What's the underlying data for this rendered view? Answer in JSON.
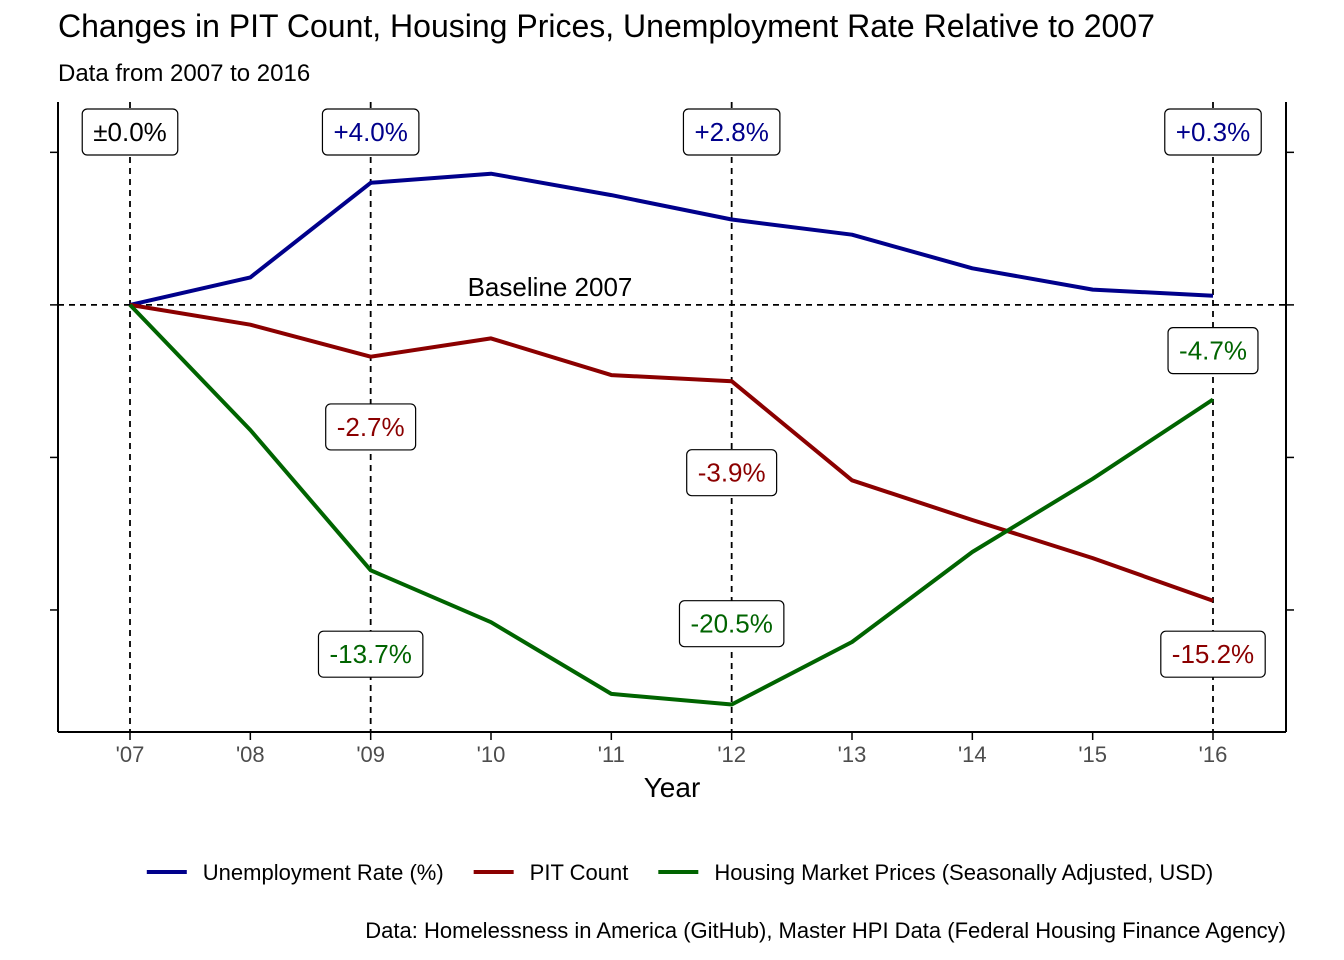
{
  "title": "Changes in PIT Count, Housing Prices, Unemployment Rate Relative to 2007",
  "subtitle": "Data from 2007 to 2016",
  "caption": "Data: Homelessness in America (GitHub), Master HPI Data (Federal Housing Finance Agency)",
  "chart_data": {
    "type": "line",
    "xlabel": "Year",
    "ylabel": "",
    "x": [
      2007,
      2008,
      2009,
      2010,
      2011,
      2012,
      2013,
      2014,
      2015,
      2016
    ],
    "tick_labels": [
      "'07",
      "'08",
      "'09",
      "'10",
      "'11",
      "'12",
      "'13",
      "'14",
      "'15",
      "'16"
    ],
    "ylim": [
      -28,
      13.3
    ],
    "y_ticks": [
      -20,
      -10,
      0,
      10
    ],
    "y_tick_labels_shown": false,
    "grid": false,
    "legend_position": "bottom",
    "baseline": {
      "value": 0,
      "label": "Baseline 2007"
    },
    "highlight_years": [
      2007,
      2009,
      2012,
      2016
    ],
    "series": [
      {
        "name": "Unemployment Rate (%)",
        "color": "#00008B",
        "values": [
          0,
          1.8,
          8.0,
          8.6,
          7.2,
          5.6,
          4.6,
          2.4,
          1.0,
          0.6
        ]
      },
      {
        "name": "PIT Count",
        "color": "#8B0000",
        "values": [
          0,
          -1.3,
          -3.4,
          -2.2,
          -4.6,
          -5.0,
          -11.5,
          -14.1,
          -16.6,
          -19.4
        ]
      },
      {
        "name": "Housing Market Prices (Seasonally Adjusted, USD)",
        "color": "#006400",
        "values": [
          0,
          -8.2,
          -17.4,
          -20.8,
          -25.5,
          -26.2,
          -22.1,
          -16.2,
          -11.4,
          -6.2
        ]
      }
    ],
    "annotations": [
      {
        "year": 2007,
        "text": "±0.0%",
        "color": "#000000",
        "anchor": "top"
      },
      {
        "year": 2009,
        "text": "+4.0%",
        "color": "#00008B",
        "anchor": "top"
      },
      {
        "year": 2012,
        "text": "+2.8%",
        "color": "#00008B",
        "anchor": "top"
      },
      {
        "year": 2016,
        "text": "+0.3%",
        "color": "#00008B",
        "anchor": "top"
      },
      {
        "year": 2009,
        "text": "-2.7%",
        "color": "#8B0000",
        "y": -8.0
      },
      {
        "year": 2012,
        "text": "-3.9%",
        "color": "#8B0000",
        "y": -11.0
      },
      {
        "year": 2016,
        "text": "-15.2%",
        "color": "#8B0000",
        "y": -22.9
      },
      {
        "year": 2009,
        "text": "-13.7%",
        "color": "#006400",
        "y": -22.9
      },
      {
        "year": 2012,
        "text": "-20.5%",
        "color": "#006400",
        "y": -20.9
      },
      {
        "year": 2016,
        "text": "-4.7%",
        "color": "#006400",
        "y": -3.0
      }
    ]
  }
}
